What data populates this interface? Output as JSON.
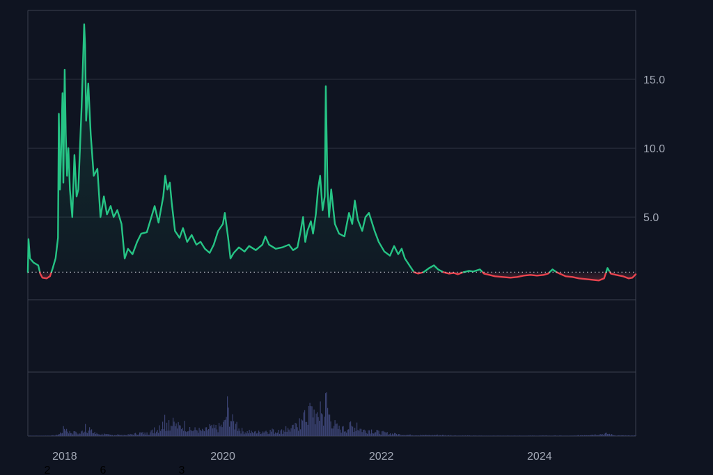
{
  "chart_data": {
    "type": "line",
    "title": "",
    "xlabel": "",
    "ylabel": "",
    "baseline": 1.0,
    "x_range": [
      "2017-07-15",
      "2025-03-20"
    ],
    "ylim": [
      -1,
      20
    ],
    "y_ticks": [
      "5.0",
      "10.0",
      "15.0"
    ],
    "x_ticks": [
      "2018",
      "2020",
      "2022",
      "2024"
    ],
    "stray_labels": [
      "2",
      "6",
      "3"
    ],
    "colors": {
      "background": "#0f1421",
      "frame": "#3b4150",
      "grid": "#2c3240",
      "above": "#26c485",
      "below": "#e8444f",
      "baseline": "#c9ccd3",
      "volume": "#3a4272",
      "tick_text": "#a3a9b6"
    },
    "series": [
      {
        "values": [
          [
            "2017-07-15",
            1.0
          ],
          [
            "2017-07-18",
            3.4
          ],
          [
            "2017-07-25",
            2.0
          ],
          [
            "2017-08-10",
            1.7
          ],
          [
            "2017-09-01",
            1.5
          ],
          [
            "2017-09-10",
            0.9
          ],
          [
            "2017-09-20",
            0.6
          ],
          [
            "2017-10-10",
            0.55
          ],
          [
            "2017-10-25",
            0.7
          ],
          [
            "2017-11-05",
            1.2
          ],
          [
            "2017-11-20",
            2.0
          ],
          [
            "2017-12-01",
            3.5
          ],
          [
            "2017-12-05",
            12.5
          ],
          [
            "2017-12-10",
            7.0
          ],
          [
            "2017-12-15",
            9.5
          ],
          [
            "2017-12-22",
            14.0
          ],
          [
            "2017-12-26",
            7.5
          ],
          [
            "2018-01-01",
            15.7
          ],
          [
            "2018-01-06",
            11.0
          ],
          [
            "2018-01-12",
            8.0
          ],
          [
            "2018-01-18",
            10.0
          ],
          [
            "2018-01-25",
            7.0
          ],
          [
            "2018-02-05",
            5.0
          ],
          [
            "2018-02-15",
            9.5
          ],
          [
            "2018-02-25",
            6.5
          ],
          [
            "2018-03-05",
            7.0
          ],
          [
            "2018-03-20",
            13.0
          ],
          [
            "2018-04-01",
            19.0
          ],
          [
            "2018-04-05",
            17.5
          ],
          [
            "2018-04-10",
            12.0
          ],
          [
            "2018-04-20",
            14.7
          ],
          [
            "2018-05-01",
            11.0
          ],
          [
            "2018-05-15",
            8.0
          ],
          [
            "2018-06-01",
            8.5
          ],
          [
            "2018-06-15",
            5.0
          ],
          [
            "2018-07-01",
            6.5
          ],
          [
            "2018-07-15",
            5.2
          ],
          [
            "2018-08-01",
            5.8
          ],
          [
            "2018-08-15",
            5.0
          ],
          [
            "2018-09-01",
            5.5
          ],
          [
            "2018-09-20",
            4.5
          ],
          [
            "2018-10-05",
            2.0
          ],
          [
            "2018-10-20",
            2.7
          ],
          [
            "2018-11-10",
            2.3
          ],
          [
            "2018-12-01",
            3.2
          ],
          [
            "2018-12-20",
            3.8
          ],
          [
            "2019-01-15",
            3.9
          ],
          [
            "2019-02-05",
            5.0
          ],
          [
            "2019-02-20",
            5.8
          ],
          [
            "2019-03-10",
            4.6
          ],
          [
            "2019-04-01",
            6.5
          ],
          [
            "2019-04-10",
            8.0
          ],
          [
            "2019-04-20",
            7.0
          ],
          [
            "2019-05-01",
            7.5
          ],
          [
            "2019-05-10",
            6.0
          ],
          [
            "2019-05-25",
            4.0
          ],
          [
            "2019-06-15",
            3.5
          ],
          [
            "2019-07-01",
            4.2
          ],
          [
            "2019-07-20",
            3.2
          ],
          [
            "2019-08-10",
            3.7
          ],
          [
            "2019-09-01",
            3.0
          ],
          [
            "2019-09-20",
            3.2
          ],
          [
            "2019-10-10",
            2.7
          ],
          [
            "2019-11-01",
            2.4
          ],
          [
            "2019-11-20",
            3.0
          ],
          [
            "2019-12-10",
            4.0
          ],
          [
            "2020-01-01",
            4.5
          ],
          [
            "2020-01-10",
            5.3
          ],
          [
            "2020-01-25",
            3.5
          ],
          [
            "2020-02-05",
            2.0
          ],
          [
            "2020-02-20",
            2.4
          ],
          [
            "2020-03-15",
            2.8
          ],
          [
            "2020-04-10",
            2.5
          ],
          [
            "2020-05-01",
            2.9
          ],
          [
            "2020-06-01",
            2.6
          ],
          [
            "2020-07-01",
            3.0
          ],
          [
            "2020-07-15",
            3.6
          ],
          [
            "2020-08-01",
            3.0
          ],
          [
            "2020-09-01",
            2.7
          ],
          [
            "2020-10-01",
            2.8
          ],
          [
            "2020-11-01",
            3.0
          ],
          [
            "2020-11-20",
            2.6
          ],
          [
            "2020-12-10",
            2.8
          ],
          [
            "2020-12-25",
            4.0
          ],
          [
            "2021-01-05",
            5.0
          ],
          [
            "2021-01-15",
            3.2
          ],
          [
            "2021-01-25",
            4.0
          ],
          [
            "2021-02-10",
            4.7
          ],
          [
            "2021-02-20",
            3.8
          ],
          [
            "2021-03-05",
            5.2
          ],
          [
            "2021-03-15",
            7.0
          ],
          [
            "2021-03-25",
            8.0
          ],
          [
            "2021-04-05",
            5.5
          ],
          [
            "2021-04-15",
            6.5
          ],
          [
            "2021-04-20",
            14.5
          ],
          [
            "2021-04-28",
            7.0
          ],
          [
            "2021-05-05",
            5.0
          ],
          [
            "2021-05-15",
            7.0
          ],
          [
            "2021-06-01",
            4.5
          ],
          [
            "2021-06-20",
            3.8
          ],
          [
            "2021-07-15",
            3.6
          ],
          [
            "2021-08-05",
            5.3
          ],
          [
            "2021-08-20",
            4.5
          ],
          [
            "2021-09-01",
            6.2
          ],
          [
            "2021-09-15",
            4.8
          ],
          [
            "2021-10-05",
            4.0
          ],
          [
            "2021-10-20",
            5.0
          ],
          [
            "2021-11-05",
            5.3
          ],
          [
            "2021-12-01",
            4.0
          ],
          [
            "2021-12-20",
            3.2
          ],
          [
            "2022-01-15",
            2.5
          ],
          [
            "2022-02-10",
            2.2
          ],
          [
            "2022-03-01",
            2.9
          ],
          [
            "2022-03-20",
            2.3
          ],
          [
            "2022-04-05",
            2.7
          ],
          [
            "2022-04-20",
            2.0
          ],
          [
            "2022-05-15",
            1.4
          ],
          [
            "2022-06-01",
            1.0
          ],
          [
            "2022-06-20",
            0.9
          ],
          [
            "2022-07-15",
            1.0
          ],
          [
            "2022-08-10",
            1.3
          ],
          [
            "2022-09-01",
            1.5
          ],
          [
            "2022-09-20",
            1.2
          ],
          [
            "2022-10-15",
            1.0
          ],
          [
            "2022-11-10",
            0.9
          ],
          [
            "2022-12-01",
            0.95
          ],
          [
            "2022-12-20",
            0.85
          ],
          [
            "2023-01-15",
            1.0
          ],
          [
            "2023-02-10",
            1.1
          ],
          [
            "2023-03-01",
            1.05
          ],
          [
            "2023-04-01",
            1.2
          ],
          [
            "2023-04-20",
            0.9
          ],
          [
            "2023-05-15",
            0.8
          ],
          [
            "2023-06-10",
            0.7
          ],
          [
            "2023-07-15",
            0.65
          ],
          [
            "2023-08-20",
            0.6
          ],
          [
            "2023-09-20",
            0.65
          ],
          [
            "2023-10-20",
            0.75
          ],
          [
            "2023-11-20",
            0.8
          ],
          [
            "2023-12-20",
            0.75
          ],
          [
            "2024-01-20",
            0.8
          ],
          [
            "2024-02-10",
            0.9
          ],
          [
            "2024-03-01",
            1.2
          ],
          [
            "2024-03-20",
            1.0
          ],
          [
            "2024-04-10",
            0.85
          ],
          [
            "2024-05-01",
            0.7
          ],
          [
            "2024-06-01",
            0.65
          ],
          [
            "2024-07-01",
            0.55
          ],
          [
            "2024-08-01",
            0.5
          ],
          [
            "2024-09-01",
            0.45
          ],
          [
            "2024-10-01",
            0.4
          ],
          [
            "2024-10-25",
            0.55
          ],
          [
            "2024-11-10",
            1.3
          ],
          [
            "2024-11-25",
            0.9
          ],
          [
            "2024-12-20",
            0.8
          ],
          [
            "2025-01-20",
            0.7
          ],
          [
            "2025-02-15",
            0.55
          ],
          [
            "2025-03-05",
            0.6
          ],
          [
            "2025-03-20",
            0.85
          ]
        ]
      }
    ],
    "volume": [
      [
        "2017-07-20",
        1.0
      ],
      [
        "2017-09-15",
        0.6
      ],
      [
        "2017-11-15",
        1.5
      ],
      [
        "2017-12-10",
        6
      ],
      [
        "2018-01-01",
        22
      ],
      [
        "2018-01-20",
        10
      ],
      [
        "2018-02-15",
        8
      ],
      [
        "2018-03-10",
        6
      ],
      [
        "2018-04-05",
        20
      ],
      [
        "2018-04-25",
        14
      ],
      [
        "2018-05-20",
        6
      ],
      [
        "2018-07-01",
        4
      ],
      [
        "2018-08-01",
        2.5
      ],
      [
        "2018-09-01",
        3
      ],
      [
        "2018-10-01",
        2
      ],
      [
        "2018-11-15",
        5
      ],
      [
        "2018-12-15",
        8
      ],
      [
        "2019-01-15",
        6
      ],
      [
        "2019-02-15",
        14
      ],
      [
        "2019-03-15",
        18
      ],
      [
        "2019-04-05",
        35
      ],
      [
        "2019-04-25",
        26
      ],
      [
        "2019-05-15",
        30
      ],
      [
        "2019-06-10",
        22
      ],
      [
        "2019-07-05",
        28
      ],
      [
        "2019-08-01",
        14
      ],
      [
        "2019-09-01",
        16
      ],
      [
        "2019-10-01",
        12
      ],
      [
        "2019-11-01",
        20
      ],
      [
        "2019-12-01",
        18
      ],
      [
        "2020-01-05",
        30
      ],
      [
        "2020-01-20",
        65
      ],
      [
        "2020-02-10",
        38
      ],
      [
        "2020-03-05",
        22
      ],
      [
        "2020-04-01",
        12
      ],
      [
        "2020-05-01",
        10
      ],
      [
        "2020-06-01",
        8
      ],
      [
        "2020-07-15",
        14
      ],
      [
        "2020-08-15",
        12
      ],
      [
        "2020-09-15",
        10
      ],
      [
        "2020-10-15",
        16
      ],
      [
        "2020-11-15",
        18
      ],
      [
        "2020-12-20",
        30
      ],
      [
        "2021-01-10",
        42
      ],
      [
        "2021-02-05",
        55
      ],
      [
        "2021-02-20",
        68
      ],
      [
        "2021-03-10",
        38
      ],
      [
        "2021-03-25",
        58
      ],
      [
        "2021-04-10",
        48
      ],
      [
        "2021-04-20",
        95
      ],
      [
        "2021-05-01",
        55
      ],
      [
        "2021-05-20",
        35
      ],
      [
        "2021-06-10",
        20
      ],
      [
        "2021-07-10",
        16
      ],
      [
        "2021-08-10",
        24
      ],
      [
        "2021-09-10",
        22
      ],
      [
        "2021-10-10",
        14
      ],
      [
        "2021-11-10",
        16
      ],
      [
        "2021-12-10",
        10
      ],
      [
        "2022-01-15",
        8
      ],
      [
        "2022-03-01",
        5
      ],
      [
        "2022-05-01",
        3
      ],
      [
        "2022-07-01",
        2
      ],
      [
        "2022-09-15",
        2.5
      ],
      [
        "2022-11-15",
        1.5
      ],
      [
        "2023-02-01",
        1.0
      ],
      [
        "2023-06-01",
        0.8
      ],
      [
        "2023-10-01",
        0.8
      ],
      [
        "2024-02-01",
        1.0
      ],
      [
        "2024-06-01",
        0.8
      ],
      [
        "2024-11-10",
        6
      ],
      [
        "2024-12-10",
        2
      ],
      [
        "2025-02-01",
        1.2
      ],
      [
        "2025-03-15",
        1.0
      ]
    ]
  }
}
